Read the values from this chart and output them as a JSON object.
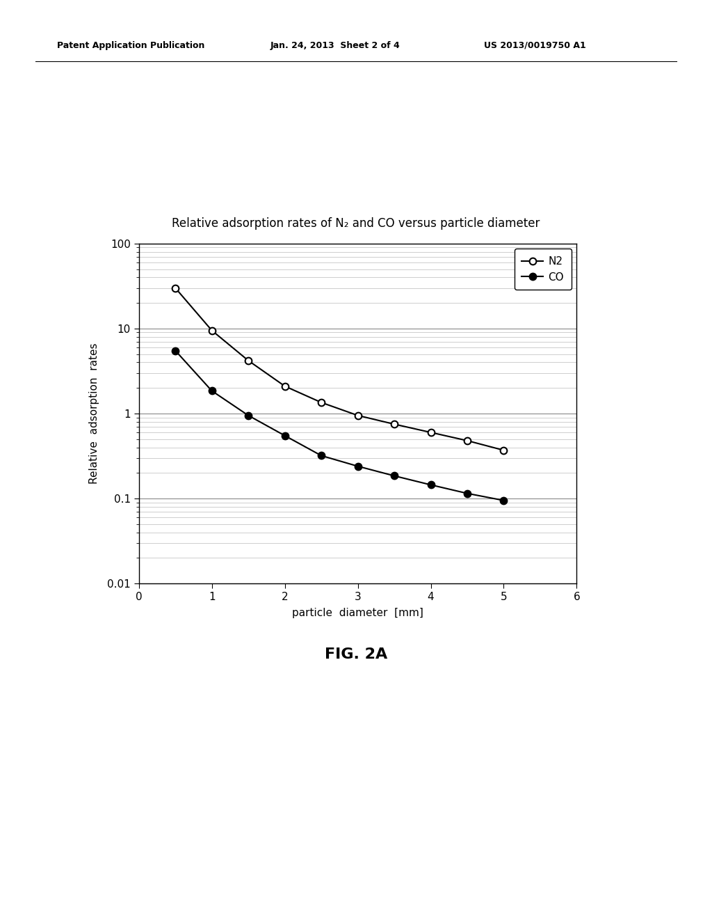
{
  "title": "Relative adsorption rates of N₂ and CO versus particle diameter",
  "xlabel": "particle  diameter  [mm]",
  "ylabel": "Relative  adsorption  rates",
  "xlim": [
    0,
    6
  ],
  "ylim_log": [
    0.01,
    100
  ],
  "n2_x": [
    0.5,
    1.0,
    1.5,
    2.0,
    2.5,
    3.0,
    3.5,
    4.0,
    4.5,
    5.0
  ],
  "n2_y": [
    30.0,
    9.5,
    4.2,
    2.1,
    1.35,
    0.95,
    0.75,
    0.6,
    0.48,
    0.37
  ],
  "co_x": [
    0.5,
    1.0,
    1.5,
    2.0,
    2.5,
    3.0,
    3.5,
    4.0,
    4.5,
    5.0
  ],
  "co_y": [
    5.5,
    1.85,
    0.95,
    0.55,
    0.32,
    0.24,
    0.185,
    0.145,
    0.115,
    0.095
  ],
  "n2_color": "black",
  "co_color": "black",
  "background_color": "#ffffff",
  "legend_n2": "N2",
  "legend_co": "CO",
  "header_left": "Patent Application Publication",
  "header_mid": "Jan. 24, 2013  Sheet 2 of 4",
  "header_right": "US 2013/0019750 A1",
  "fig_label": "FIG. 2A"
}
